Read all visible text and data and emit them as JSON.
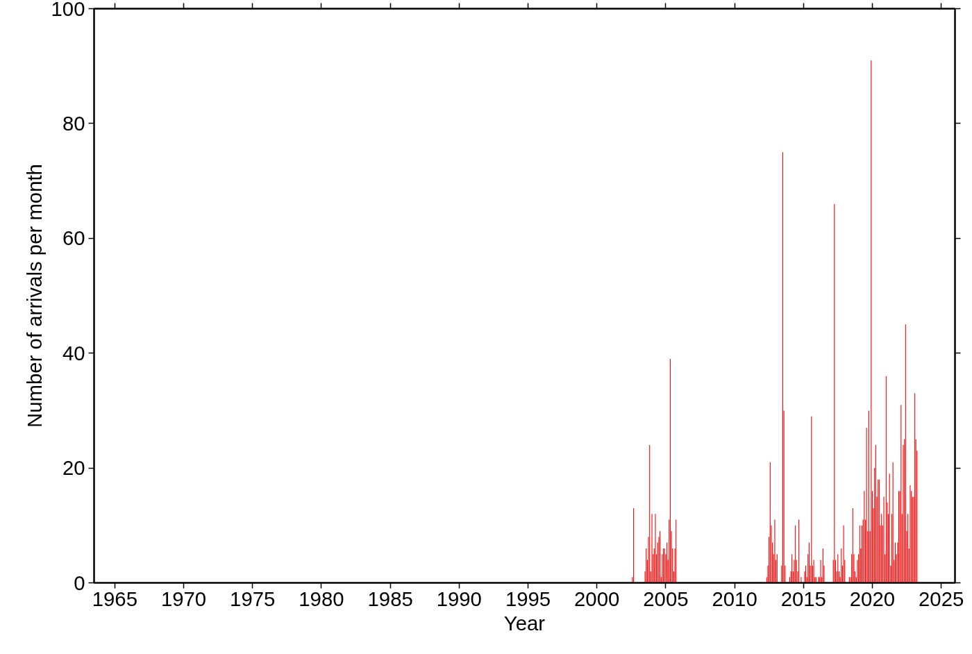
{
  "chart_data": {
    "type": "bar",
    "xlabel": "Year",
    "ylabel": "Number of arrivals per month",
    "color": "#ff0000",
    "grid": false,
    "xlim": [
      "1963-07",
      "2026-01"
    ],
    "xticks": [
      "1965",
      "1970",
      "1975",
      "1980",
      "1985",
      "1990",
      "1995",
      "2000",
      "2005",
      "2010",
      "2015",
      "2020",
      "2025"
    ],
    "ylim": [
      0,
      100
    ],
    "yticks": [
      0,
      20,
      40,
      60,
      80,
      100
    ],
    "x": [
      "2002-08",
      "2002-09",
      "2003-07",
      "2003-08",
      "2003-09",
      "2003-10",
      "2003-11",
      "2003-12",
      "2004-01",
      "2004-02",
      "2004-03",
      "2004-04",
      "2004-05",
      "2004-06",
      "2004-07",
      "2004-08",
      "2004-09",
      "2004-10",
      "2004-11",
      "2004-12",
      "2005-01",
      "2005-02",
      "2005-03",
      "2005-04",
      "2005-05",
      "2005-06",
      "2005-07",
      "2005-08",
      "2005-09",
      "2005-10",
      "2012-05",
      "2012-06",
      "2012-07",
      "2012-08",
      "2012-09",
      "2012-10",
      "2012-11",
      "2012-12",
      "2013-01",
      "2013-02",
      "2013-06",
      "2013-07",
      "2013-08",
      "2013-09",
      "2014-01",
      "2014-02",
      "2014-03",
      "2014-04",
      "2014-05",
      "2014-06",
      "2014-07",
      "2014-08",
      "2014-09",
      "2014-11",
      "2015-02",
      "2015-03",
      "2015-04",
      "2015-05",
      "2015-06",
      "2015-07",
      "2015-08",
      "2015-09",
      "2015-10",
      "2015-11",
      "2015-12",
      "2016-02",
      "2016-03",
      "2016-04",
      "2016-05",
      "2016-06",
      "2016-07",
      "2017-03",
      "2017-04",
      "2017-05",
      "2017-06",
      "2017-07",
      "2017-08",
      "2017-09",
      "2017-10",
      "2017-11",
      "2017-12",
      "2018-01",
      "2018-05",
      "2018-06",
      "2018-07",
      "2018-08",
      "2018-09",
      "2018-10",
      "2018-11",
      "2018-12",
      "2019-01",
      "2019-02",
      "2019-03",
      "2019-04",
      "2019-05",
      "2019-06",
      "2019-07",
      "2019-08",
      "2019-09",
      "2019-10",
      "2019-11",
      "2019-12",
      "2020-01",
      "2020-02",
      "2020-03",
      "2020-04",
      "2020-05",
      "2020-06",
      "2020-07",
      "2020-08",
      "2020-09",
      "2020-10",
      "2020-11",
      "2020-12",
      "2021-01",
      "2021-02",
      "2021-03",
      "2021-04",
      "2021-05",
      "2021-06",
      "2021-07",
      "2021-08",
      "2021-09",
      "2021-10",
      "2021-11",
      "2021-12",
      "2022-01",
      "2022-02",
      "2022-03",
      "2022-04",
      "2022-05",
      "2022-06",
      "2022-07",
      "2022-08",
      "2022-09",
      "2022-10",
      "2022-11",
      "2022-12",
      "2023-01",
      "2023-02",
      "2023-03",
      "2023-04"
    ],
    "values": [
      1,
      13,
      2,
      6,
      4,
      8,
      24,
      2,
      12,
      5,
      6,
      12,
      5,
      7,
      8,
      9,
      1,
      5,
      6,
      6,
      5,
      7,
      4,
      11,
      39,
      9,
      6,
      2,
      6,
      11,
      1,
      3,
      8,
      21,
      10,
      7,
      5,
      11,
      4,
      5,
      3,
      75,
      30,
      3,
      1,
      2,
      5,
      2,
      4,
      10,
      4,
      2,
      11,
      1,
      2,
      3,
      1,
      5,
      7,
      3,
      29,
      3,
      4,
      1,
      1,
      1,
      1,
      4,
      1,
      6,
      3,
      4,
      66,
      4,
      2,
      5,
      2,
      1,
      6,
      3,
      10,
      4,
      1,
      1,
      5,
      13,
      5,
      2,
      1,
      4,
      5,
      10,
      6,
      10,
      11,
      16,
      11,
      27,
      9,
      30,
      9,
      91,
      16,
      13,
      20,
      24,
      15,
      18,
      18,
      10,
      12,
      10,
      15,
      5,
      36,
      14,
      12,
      19,
      3,
      12,
      21,
      4,
      7,
      5,
      7,
      16,
      16,
      31,
      12,
      24,
      25,
      45,
      9,
      12,
      6,
      17,
      16,
      15,
      15,
      33,
      25,
      23
    ]
  }
}
